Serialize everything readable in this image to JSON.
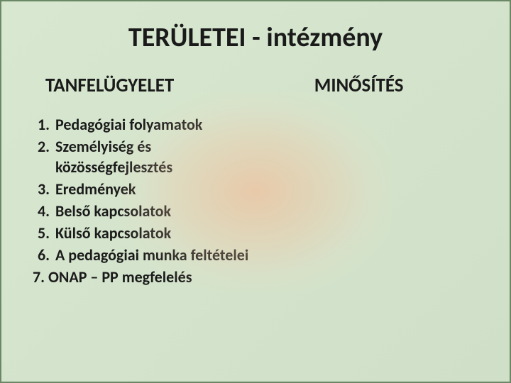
{
  "slide": {
    "title": "TERÜLETEI - intézmény",
    "left_heading": "TANFELÜGYELET",
    "right_heading": "MINŐSÍTÉS",
    "items": [
      {
        "num": "1.",
        "text": "Pedagógiai folyamatok"
      },
      {
        "num": "2.",
        "text": "Személyiség és közösségfejlesztés"
      },
      {
        "num": "3.",
        "text": "Eredmények"
      },
      {
        "num": "4.",
        "text": "Belső kapcsolatok"
      },
      {
        "num": "5.",
        "text": "Külső kapcsolatok"
      },
      {
        "num": "6.",
        "text": "A pedagógiai munka feltételei"
      }
    ],
    "item7": "7. ONAP – PP megfelelés"
  },
  "style": {
    "background_gradient_start": "#d8e8d0",
    "background_gradient_end": "#d0e0c8",
    "border_color": "#6b8866",
    "glow_color_inner": "rgba(248,180,140,0.55)",
    "text_color": "#1a1a1a",
    "title_fontsize": 38,
    "heading_fontsize": 27,
    "list_fontsize": 22,
    "list_fontweight": "bold"
  }
}
